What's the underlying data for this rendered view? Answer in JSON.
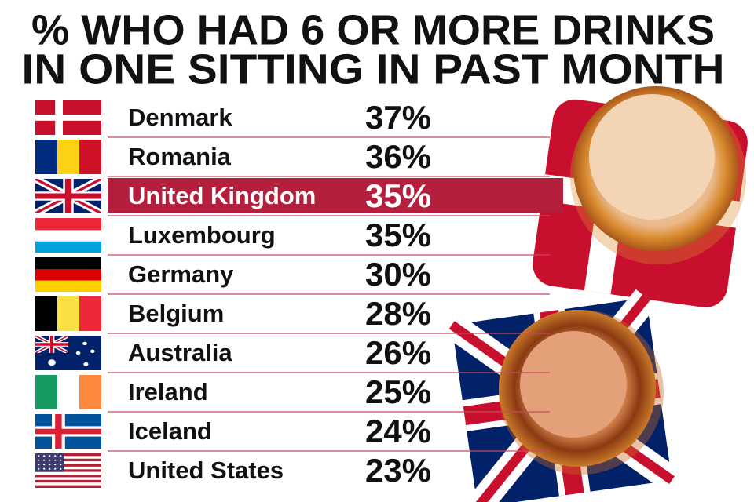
{
  "header": {
    "title_lines": [
      "% WHO HAD 6 OR MORE DRINKS",
      "IN ONE SITTING IN PAST MONTH"
    ]
  },
  "table": {
    "highlight_row": 2,
    "rows": [
      [
        "Denmark",
        "37%"
      ],
      [
        "Romania",
        "36%"
      ],
      [
        "United Kingdom",
        "35%"
      ],
      [
        "Luxembourg",
        "35%"
      ],
      [
        "Germany",
        "30%"
      ],
      [
        "Belgium",
        "28%"
      ],
      [
        "Australia",
        "26%"
      ],
      [
        "Ireland",
        "25%"
      ],
      [
        "Iceland",
        "24%"
      ],
      [
        "United States",
        "23%"
      ]
    ]
  }
}
